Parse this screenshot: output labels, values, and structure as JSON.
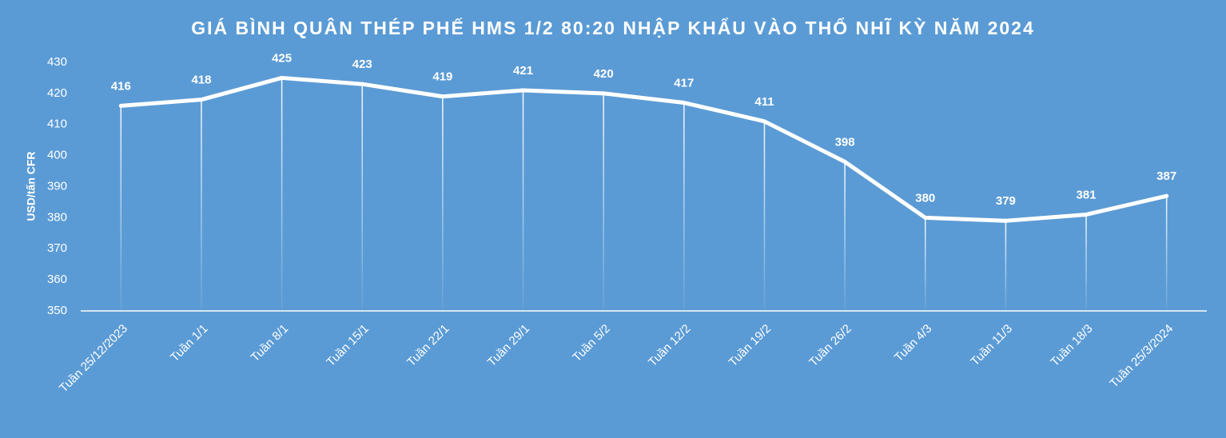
{
  "chart_data": {
    "type": "line",
    "title": "GIÁ BÌNH QUÂN THÉP PHẾ HMS 1/2 80:20 NHẬP KHẨU VÀO THỔ NHĨ KỲ NĂM 2024",
    "y_label": "USD/tấn CFR",
    "categories": [
      "Tuần 25/12/2023",
      "Tuần 1/1",
      "Tuần 8/1",
      "Tuần 15/1",
      "Tuần 22/1",
      "Tuần 29/1",
      "Tuần 5/2",
      "Tuần 12/2",
      "Tuần 19/2",
      "Tuần 26/2",
      "Tuần 4/3",
      "Tuần 11/3",
      "Tuần 18/3",
      "Tuần 25/3/2024"
    ],
    "values": [
      416,
      418,
      425,
      423,
      419,
      421,
      420,
      417,
      411,
      398,
      380,
      379,
      381,
      387
    ],
    "color": "#ffffff",
    "ylim": [
      350,
      430
    ],
    "yticks": [
      350,
      360,
      370,
      380,
      390,
      400,
      410,
      420,
      430
    ],
    "grid": false
  }
}
